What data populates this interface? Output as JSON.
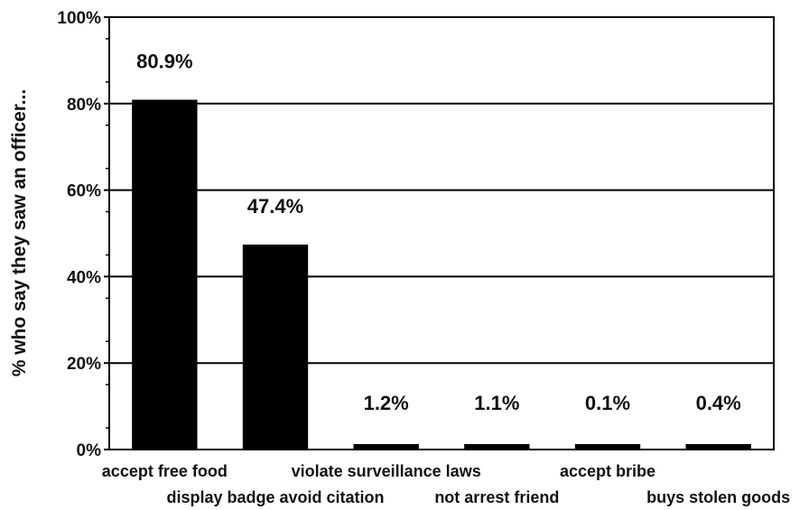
{
  "chart_data": {
    "type": "bar",
    "title": "",
    "xlabel": "",
    "ylabel": "% who say they saw an officer...",
    "ylim": [
      0,
      100
    ],
    "yticks": [
      0,
      20,
      40,
      60,
      80,
      100
    ],
    "ytick_labels": [
      "0%",
      "20%",
      "40%",
      "60%",
      "80%",
      "100%"
    ],
    "grid": true,
    "categories": [
      "accept free food",
      "display badge avoid citation",
      "violate surveillance laws",
      "not arrest friend",
      "accept bribe",
      "buys stolen goods"
    ],
    "values": [
      80.9,
      47.4,
      1.2,
      1.1,
      0.1,
      0.4
    ],
    "data_labels": [
      "80.9%",
      "47.4%",
      "1.2%",
      "1.1%",
      "0.1%",
      "0.4%"
    ],
    "bar_color": "#000000"
  }
}
